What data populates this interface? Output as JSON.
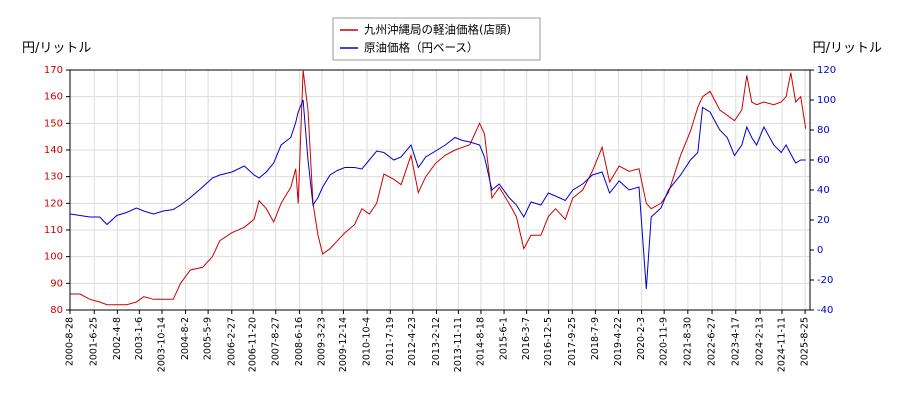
{
  "chart_data": {
    "type": "line",
    "y_label": "円/リットル",
    "y2_label": "円/リットル",
    "x": [
      "2000-9",
      "2001-1",
      "2001-5",
      "2001-9",
      "2001-12",
      "2002-4",
      "2002-8",
      "2002-12",
      "2003-3",
      "2003-7",
      "2003-11",
      "2004-3",
      "2004-6",
      "2004-10",
      "2005-3",
      "2005-7",
      "2005-10",
      "2006-3",
      "2006-8",
      "2006-12",
      "2007-2",
      "2007-5",
      "2007-8",
      "2007-11",
      "2008-3",
      "2008-5",
      "2008-6",
      "2008-8",
      "2008-10",
      "2008-12",
      "2009-2",
      "2009-4",
      "2009-7",
      "2009-10",
      "2010-1",
      "2010-5",
      "2010-8",
      "2010-11",
      "2011-2",
      "2011-5",
      "2011-9",
      "2011-12",
      "2012-4",
      "2012-7",
      "2012-10",
      "2013-2",
      "2013-6",
      "2013-10",
      "2014-1",
      "2014-4",
      "2014-8",
      "2014-10",
      "2015-1",
      "2015-4",
      "2015-8",
      "2015-11",
      "2016-2",
      "2016-5",
      "2016-9",
      "2016-12",
      "2017-3",
      "2017-7",
      "2017-10",
      "2018-2",
      "2018-6",
      "2018-10",
      "2019-1",
      "2019-5",
      "2019-9",
      "2020-1",
      "2020-4",
      "2020-6",
      "2020-10",
      "2021-1",
      "2021-6",
      "2021-10",
      "2022-1",
      "2022-3",
      "2022-6",
      "2022-10",
      "2023-1",
      "2023-4",
      "2023-7",
      "2023-9",
      "2023-11",
      "2024-1",
      "2024-4",
      "2024-8",
      "2024-11",
      "2025-1",
      "2025-3",
      "2025-5",
      "2025-7",
      "2025-9"
    ],
    "series": [
      {
        "name": "九州沖縄局の軽油価格(店頭)",
        "color": "#cc0000",
        "axis": "y",
        "values": [
          86,
          86,
          84,
          83,
          82,
          82,
          82,
          83,
          85,
          84,
          84,
          84,
          90,
          95,
          96,
          100,
          106,
          109,
          111,
          114,
          121,
          118,
          113,
          120,
          126,
          133,
          120,
          170,
          155,
          120,
          108,
          101,
          103,
          106,
          109,
          112,
          118,
          116,
          120,
          131,
          129,
          127,
          138,
          124,
          130,
          135,
          138,
          140,
          141,
          142,
          150,
          146,
          122,
          126,
          120,
          115,
          103,
          108,
          108,
          115,
          118,
          114,
          122,
          125,
          132,
          141,
          128,
          134,
          132,
          133,
          120,
          118,
          120,
          124,
          138,
          147,
          156,
          160,
          162,
          155,
          153,
          151,
          155,
          168,
          158,
          157,
          158,
          157,
          158,
          160,
          169,
          158,
          160,
          148
        ]
      },
      {
        "name": "原油価格（円ベース）",
        "color": "#0000cc",
        "axis": "y2",
        "values": [
          24,
          23,
          22,
          22,
          17,
          23,
          25,
          28,
          26,
          24,
          26,
          27,
          30,
          35,
          42,
          48,
          50,
          52,
          56,
          50,
          48,
          52,
          58,
          70,
          75,
          85,
          92,
          100,
          60,
          30,
          35,
          42,
          50,
          53,
          55,
          55,
          54,
          60,
          66,
          65,
          60,
          62,
          70,
          55,
          62,
          66,
          70,
          75,
          73,
          72,
          70,
          62,
          40,
          44,
          35,
          30,
          22,
          32,
          30,
          38,
          36,
          33,
          40,
          44,
          50,
          52,
          38,
          46,
          40,
          42,
          -26,
          22,
          28,
          40,
          50,
          60,
          65,
          95,
          92,
          80,
          75,
          63,
          70,
          82,
          75,
          70,
          82,
          70,
          65,
          70,
          64,
          58,
          60,
          60
        ]
      }
    ],
    "xlim": [
      "2000-8-28",
      "2025-10-25"
    ],
    "xticks": [
      "2000-8-28",
      "2001-6-25",
      "2002-4-8",
      "2003-1-6",
      "2003-10-14",
      "2004-8-2",
      "2005-5-9",
      "2006-2-27",
      "2006-11-20",
      "2007-8-27",
      "2008-6-16",
      "2009-3-23",
      "2009-12-14",
      "2010-10-4",
      "2011-7-19",
      "2012-4-23",
      "2013-2-12",
      "2013-11-11",
      "2014-8-18",
      "2015-6-1",
      "2016-3-7",
      "2016-12-5",
      "2017-9-25",
      "2018-7-9",
      "2019-4-22",
      "2020-2-3",
      "2020-11-9",
      "2021-8-30",
      "2022-6-27",
      "2023-4-17",
      "2024-2-13",
      "2024-11-11",
      "2025-8-25"
    ],
    "ylim": [
      80,
      170
    ],
    "yticks": [
      80,
      90,
      100,
      110,
      120,
      130,
      140,
      150,
      160,
      170
    ],
    "y2lim": [
      -40,
      120
    ],
    "y2ticks": [
      -40,
      -20,
      0,
      20,
      40,
      60,
      80,
      100,
      120
    ],
    "grid": true
  }
}
